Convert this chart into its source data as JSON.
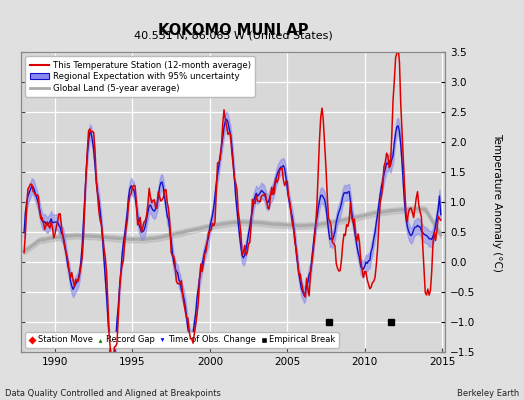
{
  "title": "KOKOMO MUNI AP",
  "subtitle": "40.531 N, 86.063 W (United States)",
  "ylabel": "Temperature Anomaly (°C)",
  "xlabel_left": "Data Quality Controlled and Aligned at Breakpoints",
  "xlabel_right": "Berkeley Earth",
  "ylim": [
    -1.5,
    3.5
  ],
  "xlim": [
    1987.8,
    2015.2
  ],
  "yticks": [
    -1.5,
    -1.0,
    -0.5,
    0,
    0.5,
    1.0,
    1.5,
    2.0,
    2.5,
    3.0,
    3.5
  ],
  "xticks": [
    1990,
    1995,
    2000,
    2005,
    2010,
    2015
  ],
  "bg_color": "#e0e0e0",
  "plot_bg_color": "#d8d8d8",
  "grid_color": "#ffffff",
  "station_color": "#dd0000",
  "regional_color": "#1111cc",
  "regional_fill_color": "#8888ee",
  "global_color": "#aaaaaa",
  "legend_items": [
    "This Temperature Station (12-month average)",
    "Regional Expectation with 95% uncertainty",
    "Global Land (5-year average)"
  ],
  "empirical_breaks": [
    2007.7,
    2011.7
  ],
  "seed": 42
}
